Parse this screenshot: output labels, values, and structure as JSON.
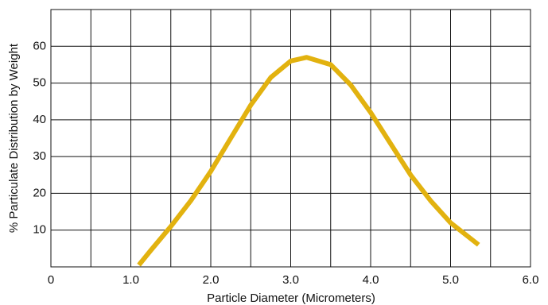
{
  "chart_data": {
    "type": "line",
    "x_label": "Particle Diameter (Micrometers)",
    "y_label": "% Particulate Distribution by Weight",
    "xlim": [
      0,
      6
    ],
    "xticks": [
      0,
      {
        "value": 1,
        "label": "1.0"
      },
      {
        "value": 2,
        "label": "2.0"
      },
      {
        "value": 3,
        "label": "3.0"
      },
      {
        "value": 4,
        "label": "4.0"
      },
      {
        "value": 5,
        "label": "5.0"
      },
      {
        "value": 6,
        "label": "6.0"
      }
    ],
    "x_minor_grid": [
      0.5,
      1.5,
      2.5,
      3.5,
      4.5,
      5.5
    ],
    "ylim": [
      0,
      70
    ],
    "yticks": [
      10,
      20,
      30,
      40,
      50,
      60
    ],
    "grid": true,
    "series": [
      {
        "color": "#e2b20f",
        "x": [
          1.1,
          1.25,
          1.5,
          1.75,
          2.0,
          2.25,
          2.5,
          2.75,
          3.0,
          3.2,
          3.5,
          3.75,
          4.0,
          4.25,
          4.5,
          4.75,
          5.0,
          5.35
        ],
        "values": [
          0.5,
          4.5,
          11,
          18,
          26,
          35,
          44,
          51.5,
          56,
          57,
          55,
          49.5,
          42,
          33.5,
          25,
          18,
          12,
          6
        ]
      }
    ]
  }
}
